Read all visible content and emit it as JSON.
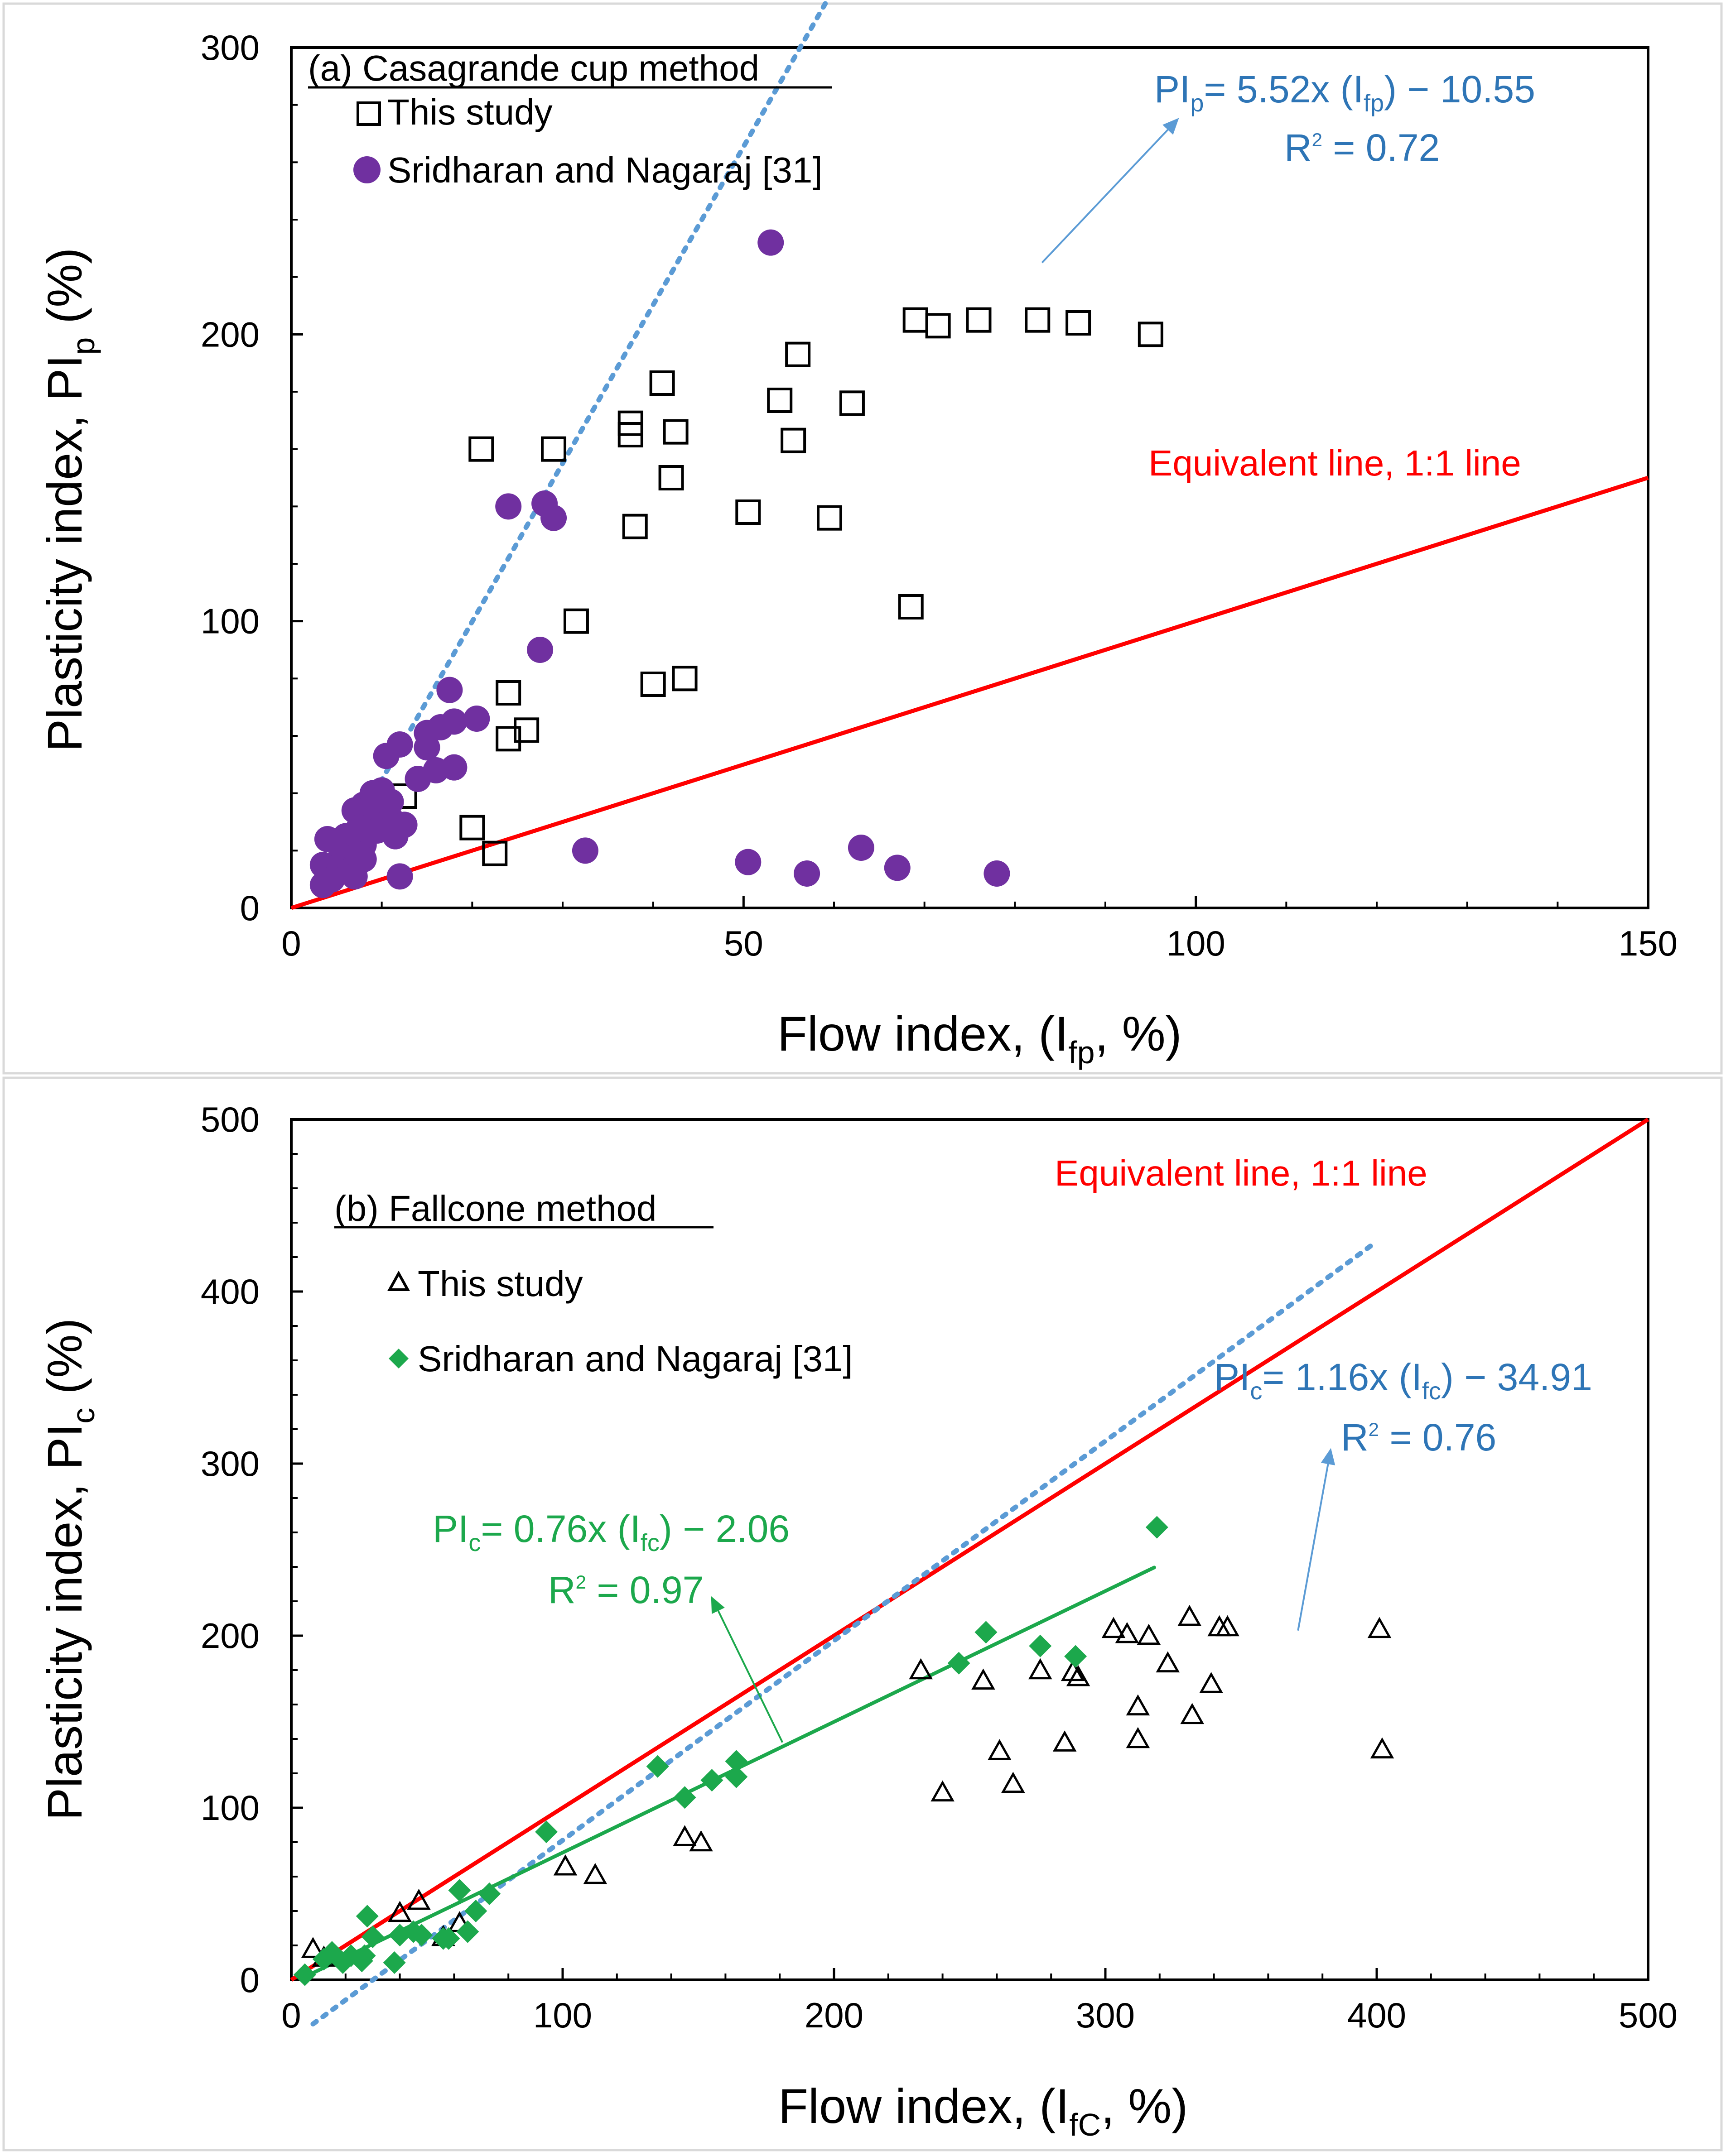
{
  "colors": {
    "this_study_marker": "#000000",
    "sridharan_circle": "#7030A0",
    "sridharan_diamond": "#1CA84C",
    "trend_blue": "#5B9BD5",
    "equation_blue": "#2E75B6",
    "equivalent_red": "#FF0000",
    "equation_green": "#1CA84C"
  },
  "chart_data": [
    {
      "id": "a",
      "type": "scatter",
      "panel_label": "(a) Casagrande cup method",
      "xlabel": "Flow index, (I",
      "xlabel_sub": "fp",
      "xlabel_tail": ", %)",
      "ylabel": "Plasticity index, PI",
      "ylabel_sub": "p",
      "ylabel_tail": "  (%)",
      "xlim": [
        0,
        150
      ],
      "ylim": [
        0,
        300
      ],
      "x_ticks": [
        0,
        50,
        100,
        150
      ],
      "y_ticks": [
        0,
        100,
        200,
        300
      ],
      "x_tick_labels": [
        "0",
        "50",
        "100",
        "150"
      ],
      "y_tick_labels": [
        "0",
        "100",
        "200",
        "300"
      ],
      "legend": [
        {
          "label": "This study",
          "marker": "square"
        },
        {
          "label": "Sridharan and Nagaraj [31]",
          "marker": "circle"
        }
      ],
      "series": [
        {
          "name": "This study",
          "marker": "square",
          "points": [
            [
              21,
              160
            ],
            [
              29,
              160
            ],
            [
              37.5,
              169
            ],
            [
              37.5,
              165
            ],
            [
              41,
              183
            ],
            [
              42.5,
              166
            ],
            [
              42,
              150
            ],
            [
              38,
              133
            ],
            [
              56,
              193
            ],
            [
              54,
              177
            ],
            [
              55.5,
              163
            ],
            [
              62,
              176
            ],
            [
              50.5,
              138
            ],
            [
              59.5,
              136
            ],
            [
              31.5,
              100
            ],
            [
              24,
              75
            ],
            [
              40,
              78
            ],
            [
              43.5,
              80
            ],
            [
              26,
              62
            ],
            [
              24,
              59
            ],
            [
              12.5,
              39
            ],
            [
              20,
              28
            ],
            [
              22.5,
              19
            ],
            [
              68.5,
              105
            ],
            [
              69,
              205
            ],
            [
              71.5,
              203
            ],
            [
              76,
              205
            ],
            [
              82.5,
              205
            ],
            [
              87,
              204
            ],
            [
              95,
              200
            ]
          ]
        },
        {
          "name": "Sridharan and Nagaraj [31]",
          "marker": "circle",
          "points": [
            [
              53,
              232
            ],
            [
              24,
              140
            ],
            [
              28,
              141
            ],
            [
              29,
              136
            ],
            [
              27.5,
              90
            ],
            [
              17.5,
              76
            ],
            [
              20.5,
              66
            ],
            [
              18,
              65
            ],
            [
              16.5,
              63
            ],
            [
              15,
              61
            ],
            [
              12,
              57
            ],
            [
              15,
              56
            ],
            [
              10.5,
              53
            ],
            [
              16,
              48
            ],
            [
              18,
              49
            ],
            [
              14,
              45
            ],
            [
              10,
              41
            ],
            [
              9,
              40
            ],
            [
              11,
              37
            ],
            [
              10,
              35
            ],
            [
              8,
              36
            ],
            [
              7,
              34
            ],
            [
              9,
              33
            ],
            [
              11,
              31
            ],
            [
              12.5,
              29
            ],
            [
              7.5,
              28
            ],
            [
              9.5,
              27
            ],
            [
              11.5,
              25
            ],
            [
              6,
              25
            ],
            [
              4,
              24
            ],
            [
              8,
              22
            ],
            [
              7,
              19
            ],
            [
              5.5,
              18
            ],
            [
              8,
              17
            ],
            [
              3.5,
              15
            ],
            [
              5,
              14
            ],
            [
              6.5,
              13
            ],
            [
              7,
              11
            ],
            [
              12,
              11
            ],
            [
              4.5,
              10
            ],
            [
              3.5,
              8
            ],
            [
              32.5,
              20
            ],
            [
              50.5,
              16
            ],
            [
              57,
              12
            ],
            [
              63,
              21
            ],
            [
              67,
              14
            ],
            [
              78,
              12
            ]
          ]
        }
      ],
      "trendline": {
        "slope": 5.52,
        "intercept": -10.55,
        "x_range": [
          6.5,
          94.5
        ]
      },
      "equivalent_line": {
        "label": "Equivalent line, 1:1 line",
        "from": [
          0,
          0
        ],
        "to": [
          150,
          150
        ]
      },
      "annotations": {
        "equation": {
          "prefix": "PI",
          "sub1": "p",
          "mid": "= 5.52x (I",
          "sub2": "fp",
          "tail": ") − 10.55"
        },
        "r2": {
          "prefix": "R",
          "sup": "2",
          "tail": " = 0.72"
        },
        "arrow": {
          "from": [
            83,
            225
          ],
          "to": [
            98,
            275
          ]
        }
      }
    },
    {
      "id": "b",
      "type": "scatter",
      "panel_label": "(b) Fallcone method",
      "xlabel": "Flow index, (I",
      "xlabel_sub": "fC",
      "xlabel_tail": ", %)",
      "ylabel": "Plasticity index, PI",
      "ylabel_sub": "c",
      "ylabel_tail": "  (%)",
      "xlim": [
        0,
        500
      ],
      "ylim": [
        0,
        500
      ],
      "x_ticks": [
        0,
        100,
        200,
        300,
        400,
        500
      ],
      "y_ticks": [
        0,
        100,
        200,
        300,
        400,
        500
      ],
      "x_tick_labels": [
        "0",
        "100",
        "200",
        "300",
        "400",
        "500"
      ],
      "y_tick_labels": [
        "0",
        "100",
        "200",
        "300",
        "400",
        "500"
      ],
      "legend": [
        {
          "label": "This study",
          "marker": "triangle"
        },
        {
          "label": "Sridharan and Nagaraj [31]",
          "marker": "diamond"
        }
      ],
      "series": [
        {
          "name": "This study",
          "marker": "triangle",
          "points": [
            [
              8,
              17
            ],
            [
              12,
              12
            ],
            [
              40,
              38
            ],
            [
              47,
              45
            ],
            [
              56,
              24
            ],
            [
              62,
              32
            ],
            [
              101,
              65
            ],
            [
              112,
              60
            ],
            [
              145,
              82
            ],
            [
              151,
              79
            ],
            [
              232,
              179
            ],
            [
              240,
              108
            ],
            [
              255,
              173
            ],
            [
              261,
              132
            ],
            [
              266,
              113
            ],
            [
              276,
              179
            ],
            [
              285,
              137
            ],
            [
              288,
              178
            ],
            [
              290,
              175
            ],
            [
              303,
              203
            ],
            [
              308,
              200
            ],
            [
              312,
              158
            ],
            [
              312,
              139
            ],
            [
              316,
              199
            ],
            [
              323,
              183
            ],
            [
              331,
              210
            ],
            [
              332,
              153
            ],
            [
              339,
              171
            ],
            [
              342,
              204
            ],
            [
              345,
              204
            ],
            [
              401,
              203
            ],
            [
              402,
              133
            ]
          ]
        },
        {
          "name": "Sridharan and Nagaraj [31]",
          "marker": "diamond",
          "points": [
            [
              5,
              3
            ],
            [
              12,
              12
            ],
            [
              15,
              16
            ],
            [
              19,
              10
            ],
            [
              22,
              14
            ],
            [
              26,
              11
            ],
            [
              27,
              14
            ],
            [
              28,
              37
            ],
            [
              30,
              25
            ],
            [
              38,
              10
            ],
            [
              40,
              26
            ],
            [
              45,
              28
            ],
            [
              48,
              26
            ],
            [
              56,
              24
            ],
            [
              58,
              24
            ],
            [
              62,
              52
            ],
            [
              65,
              28
            ],
            [
              68,
              40
            ],
            [
              73,
              50
            ],
            [
              94,
              86
            ],
            [
              135,
              124
            ],
            [
              145,
              106
            ],
            [
              155,
              116
            ],
            [
              164,
              127
            ],
            [
              164,
              118
            ],
            [
              246,
              184
            ],
            [
              256,
              202
            ],
            [
              276,
              194
            ],
            [
              289,
              188
            ],
            [
              319,
              263
            ]
          ]
        }
      ],
      "trendline_blue": {
        "slope": 1.16,
        "intercept": -34.91,
        "x_range": [
          8,
          400
        ]
      },
      "trendline_green": {
        "slope": 0.76,
        "intercept": -2.06,
        "x_range": [
          8,
          318
        ]
      },
      "equivalent_line": {
        "label": "Equivalent line, 1:1 line",
        "from": [
          0,
          0
        ],
        "to": [
          500,
          500
        ]
      },
      "annotations": {
        "equation_blue": {
          "prefix": "PI",
          "sub1": "c",
          "mid": "= 1.16x (I",
          "sub2": "fc",
          "tail": ") − 34.91"
        },
        "r2_blue": {
          "prefix": "R",
          "sup": "2",
          "tail": " = 0.76"
        },
        "arrow_blue": {
          "from": [
            371,
            203
          ],
          "to": [
            383,
            308
          ]
        },
        "equation_green": {
          "prefix": "PI",
          "sub1": "c",
          "mid": "= 0.76x (I",
          "sub2": "fc",
          "tail": ") − 2.06"
        },
        "r2_green": {
          "prefix": "R",
          "sup": "2",
          "tail": " = 0.97"
        },
        "arrow_green": {
          "from": [
            181,
            138
          ],
          "to": [
            155,
            222
          ]
        }
      }
    }
  ]
}
